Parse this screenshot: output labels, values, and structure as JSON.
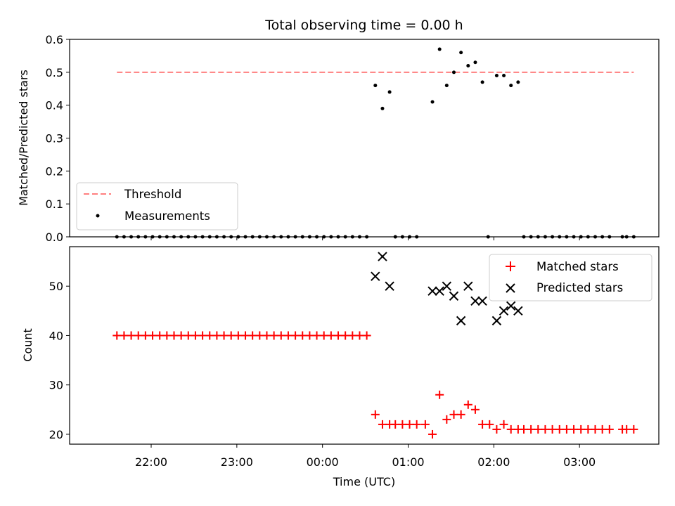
{
  "chart_data": {
    "type": "scatter",
    "title": "Total observing time = 0.00 h",
    "xlabel": "Time (UTC)",
    "x_ticks": [
      "22:00",
      "23:00",
      "00:00",
      "01:00",
      "02:00",
      "03:00"
    ],
    "panels": [
      {
        "ylabel": "Matched/Predicted stars",
        "ylim": [
          0,
          0.6
        ],
        "y_ticks": [
          "0.0",
          "0.1",
          "0.2",
          "0.3",
          "0.4",
          "0.5",
          "0.6"
        ],
        "legend": {
          "placement": "lower-left",
          "entries": [
            "Threshold",
            "Measurements"
          ]
        },
        "threshold": {
          "name": "Threshold",
          "value": 0.5,
          "color": "#ff7f7f"
        },
        "measurements": {
          "name": "Measurements",
          "color": "#000000",
          "zero_times": [
            "21:36",
            "21:41",
            "21:46",
            "21:51",
            "21:56",
            "22:01",
            "22:06",
            "22:11",
            "22:16",
            "22:21",
            "22:26",
            "22:31",
            "22:36",
            "22:41",
            "22:46",
            "22:51",
            "22:56",
            "23:01",
            "23:06",
            "23:11",
            "23:16",
            "23:21",
            "23:26",
            "23:31",
            "23:36",
            "23:41",
            "23:46",
            "23:51",
            "23:56",
            "00:01",
            "00:06",
            "00:11",
            "00:16",
            "00:21",
            "00:26",
            "00:31",
            "00:51",
            "00:56",
            "01:01",
            "01:06",
            "01:56",
            "02:21",
            "02:26",
            "02:31",
            "02:36",
            "02:41",
            "02:46",
            "02:51",
            "02:56",
            "03:01",
            "03:06",
            "03:11",
            "03:16",
            "03:21",
            "03:30",
            "03:33",
            "03:38"
          ],
          "points": [
            {
              "t": "00:37",
              "v": 0.46
            },
            {
              "t": "00:42",
              "v": 0.39
            },
            {
              "t": "00:47",
              "v": 0.44
            },
            {
              "t": "01:17",
              "v": 0.41
            },
            {
              "t": "01:22",
              "v": 0.57
            },
            {
              "t": "01:27",
              "v": 0.46
            },
            {
              "t": "01:32",
              "v": 0.5
            },
            {
              "t": "01:37",
              "v": 0.56
            },
            {
              "t": "01:42",
              "v": 0.52
            },
            {
              "t": "01:47",
              "v": 0.53
            },
            {
              "t": "01:52",
              "v": 0.47
            },
            {
              "t": "02:02",
              "v": 0.49
            },
            {
              "t": "02:07",
              "v": 0.49
            },
            {
              "t": "02:12",
              "v": 0.46
            },
            {
              "t": "02:17",
              "v": 0.47
            }
          ]
        }
      },
      {
        "ylabel": "Count",
        "ylim": [
          18,
          58
        ],
        "y_ticks": [
          "20",
          "30",
          "40",
          "50"
        ],
        "legend": {
          "placement": "upper-right",
          "entries": [
            "Matched stars",
            "Predicted stars"
          ]
        },
        "series": [
          {
            "name": "Matched stars",
            "marker": "plus",
            "color": "#ff0000",
            "points": [
              {
                "t": "21:36",
                "v": 40
              },
              {
                "t": "21:41",
                "v": 40
              },
              {
                "t": "21:46",
                "v": 40
              },
              {
                "t": "21:51",
                "v": 40
              },
              {
                "t": "21:56",
                "v": 40
              },
              {
                "t": "22:01",
                "v": 40
              },
              {
                "t": "22:06",
                "v": 40
              },
              {
                "t": "22:11",
                "v": 40
              },
              {
                "t": "22:16",
                "v": 40
              },
              {
                "t": "22:21",
                "v": 40
              },
              {
                "t": "22:26",
                "v": 40
              },
              {
                "t": "22:31",
                "v": 40
              },
              {
                "t": "22:36",
                "v": 40
              },
              {
                "t": "22:41",
                "v": 40
              },
              {
                "t": "22:46",
                "v": 40
              },
              {
                "t": "22:51",
                "v": 40
              },
              {
                "t": "22:56",
                "v": 40
              },
              {
                "t": "23:01",
                "v": 40
              },
              {
                "t": "23:06",
                "v": 40
              },
              {
                "t": "23:11",
                "v": 40
              },
              {
                "t": "23:16",
                "v": 40
              },
              {
                "t": "23:21",
                "v": 40
              },
              {
                "t": "23:26",
                "v": 40
              },
              {
                "t": "23:31",
                "v": 40
              },
              {
                "t": "23:36",
                "v": 40
              },
              {
                "t": "23:41",
                "v": 40
              },
              {
                "t": "23:46",
                "v": 40
              },
              {
                "t": "23:51",
                "v": 40
              },
              {
                "t": "23:56",
                "v": 40
              },
              {
                "t": "00:01",
                "v": 40
              },
              {
                "t": "00:06",
                "v": 40
              },
              {
                "t": "00:11",
                "v": 40
              },
              {
                "t": "00:16",
                "v": 40
              },
              {
                "t": "00:21",
                "v": 40
              },
              {
                "t": "00:26",
                "v": 40
              },
              {
                "t": "00:31",
                "v": 40
              },
              {
                "t": "00:37",
                "v": 24
              },
              {
                "t": "00:42",
                "v": 22
              },
              {
                "t": "00:47",
                "v": 22
              },
              {
                "t": "00:51",
                "v": 22
              },
              {
                "t": "00:56",
                "v": 22
              },
              {
                "t": "01:01",
                "v": 22
              },
              {
                "t": "01:06",
                "v": 22
              },
              {
                "t": "01:12",
                "v": 22
              },
              {
                "t": "01:17",
                "v": 20
              },
              {
                "t": "01:22",
                "v": 28
              },
              {
                "t": "01:27",
                "v": 23
              },
              {
                "t": "01:32",
                "v": 24
              },
              {
                "t": "01:37",
                "v": 24
              },
              {
                "t": "01:42",
                "v": 26
              },
              {
                "t": "01:47",
                "v": 25
              },
              {
                "t": "01:52",
                "v": 22
              },
              {
                "t": "01:57",
                "v": 22
              },
              {
                "t": "02:02",
                "v": 21
              },
              {
                "t": "02:07",
                "v": 22
              },
              {
                "t": "02:12",
                "v": 21
              },
              {
                "t": "02:17",
                "v": 21
              },
              {
                "t": "02:21",
                "v": 21
              },
              {
                "t": "02:26",
                "v": 21
              },
              {
                "t": "02:31",
                "v": 21
              },
              {
                "t": "02:36",
                "v": 21
              },
              {
                "t": "02:41",
                "v": 21
              },
              {
                "t": "02:46",
                "v": 21
              },
              {
                "t": "02:51",
                "v": 21
              },
              {
                "t": "02:56",
                "v": 21
              },
              {
                "t": "03:01",
                "v": 21
              },
              {
                "t": "03:06",
                "v": 21
              },
              {
                "t": "03:11",
                "v": 21
              },
              {
                "t": "03:16",
                "v": 21
              },
              {
                "t": "03:21",
                "v": 21
              },
              {
                "t": "03:30",
                "v": 21
              },
              {
                "t": "03:33",
                "v": 21
              },
              {
                "t": "03:38",
                "v": 21
              }
            ]
          },
          {
            "name": "Predicted stars",
            "marker": "x",
            "color": "#000000",
            "points": [
              {
                "t": "00:37",
                "v": 52
              },
              {
                "t": "00:42",
                "v": 56
              },
              {
                "t": "00:47",
                "v": 50
              },
              {
                "t": "01:17",
                "v": 49
              },
              {
                "t": "01:22",
                "v": 49
              },
              {
                "t": "01:27",
                "v": 50
              },
              {
                "t": "01:32",
                "v": 48
              },
              {
                "t": "01:37",
                "v": 43
              },
              {
                "t": "01:42",
                "v": 50
              },
              {
                "t": "01:47",
                "v": 47
              },
              {
                "t": "01:52",
                "v": 47
              },
              {
                "t": "02:02",
                "v": 43
              },
              {
                "t": "02:07",
                "v": 45
              },
              {
                "t": "02:12",
                "v": 46
              },
              {
                "t": "02:17",
                "v": 45
              }
            ]
          }
        ]
      }
    ]
  }
}
